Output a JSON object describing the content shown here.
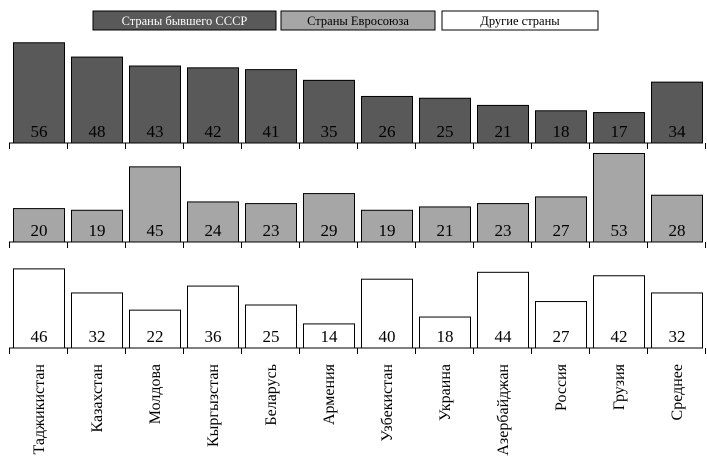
{
  "chart_data": {
    "type": "bar",
    "categories": [
      "Таджикистан",
      "Казахстан",
      "Молдова",
      "Кыргызстан",
      "Беларусь",
      "Армения",
      "Узбекистан",
      "Украина",
      "Азербайджан",
      "Россия",
      "Грузия",
      "Среднее"
    ],
    "series": [
      {
        "name": "Страны бывшего СССР",
        "color": "#595959",
        "values": [
          56,
          48,
          43,
          42,
          41,
          35,
          26,
          25,
          21,
          18,
          17,
          34
        ]
      },
      {
        "name": "Страны Евросоюза",
        "color": "#a6a6a6",
        "values": [
          20,
          19,
          45,
          24,
          23,
          29,
          19,
          21,
          23,
          27,
          53,
          28
        ]
      },
      {
        "name": "Другие страны",
        "color": "#ffffff",
        "values": [
          46,
          32,
          22,
          36,
          25,
          14,
          40,
          18,
          44,
          27,
          42,
          32
        ]
      }
    ],
    "legend_position": "top",
    "grid": false
  }
}
